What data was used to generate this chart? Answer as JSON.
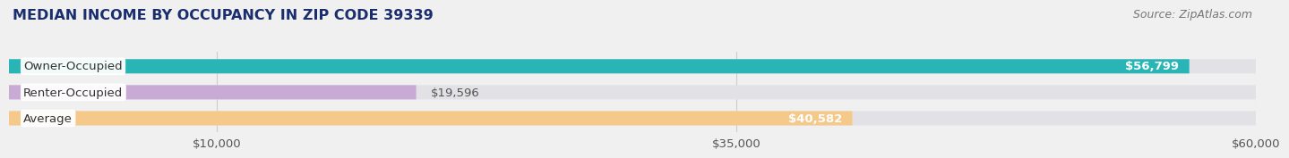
{
  "title": "MEDIAN INCOME BY OCCUPANCY IN ZIP CODE 39339",
  "source": "Source: ZipAtlas.com",
  "categories": [
    "Owner-Occupied",
    "Renter-Occupied",
    "Average"
  ],
  "values": [
    56799,
    19596,
    40582
  ],
  "value_labels": [
    "$56,799",
    "$19,596",
    "$40,582"
  ],
  "bar_colors": [
    "#29b5b5",
    "#c9aad4",
    "#f5c98a"
  ],
  "bg_color": "#f0f0f0",
  "bar_bg_color": "#e2e2e6",
  "xlim": [
    0,
    60000
  ],
  "xticks": [
    10000,
    35000,
    60000
  ],
  "xticklabels": [
    "$10,000",
    "$35,000",
    "$60,000"
  ],
  "title_fontsize": 11.5,
  "label_fontsize": 9.5,
  "value_fontsize": 9.5,
  "source_fontsize": 9,
  "title_color": "#1a2e6e",
  "source_color": "#777777"
}
